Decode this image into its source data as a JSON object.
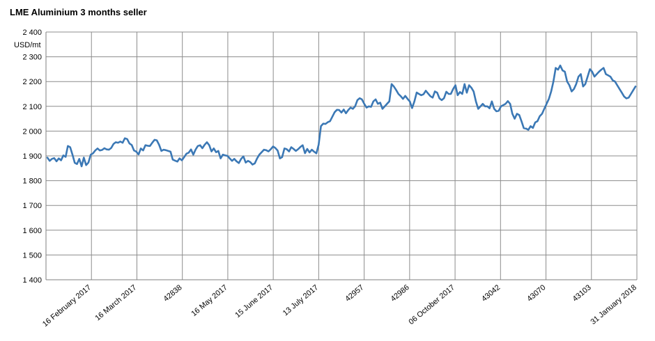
{
  "chart_data": {
    "type": "line",
    "title": "LME Aluminium 3 months seller",
    "ylabel": "USD/mt",
    "xlabel": "",
    "ylim": [
      1400,
      2400
    ],
    "y_ticks": [
      1400,
      1500,
      1600,
      1700,
      1800,
      1900,
      2000,
      2100,
      2200,
      2300,
      2400
    ],
    "y_tick_labels": [
      "1 400",
      "1 500",
      "1 600",
      "1 700",
      "1 800",
      "1 900",
      "2 000",
      "2 100",
      "2 200",
      "2 300",
      "2 400"
    ],
    "x_tick_labels": [
      "16 February 2017",
      "16 March 2017",
      "42838",
      "16 May 2017",
      "15 June 2017",
      "13 July 2017",
      "42957",
      "42986",
      "06 October 2017",
      "43042",
      "43070",
      "43103",
      "31 January 2018"
    ],
    "grid": "vertical and horizontal",
    "line_color": "#3b78b5",
    "series": [
      {
        "values": [
          1893,
          1880,
          1888,
          1891,
          1878,
          1890,
          1882,
          1902,
          1896,
          1940,
          1935,
          1905,
          1872,
          1867,
          1888,
          1858,
          1893,
          1863,
          1873,
          1905,
          1910,
          1922,
          1930,
          1922,
          1924,
          1931,
          1926,
          1925,
          1932,
          1948,
          1955,
          1953,
          1958,
          1953,
          1971,
          1968,
          1950,
          1944,
          1922,
          1917,
          1906,
          1930,
          1922,
          1943,
          1941,
          1940,
          1953,
          1965,
          1963,
          1945,
          1920,
          1925,
          1923,
          1920,
          1917,
          1885,
          1881,
          1877,
          1890,
          1882,
          1895,
          1909,
          1913,
          1926,
          1905,
          1925,
          1940,
          1943,
          1931,
          1945,
          1955,
          1943,
          1918,
          1930,
          1915,
          1920,
          1890,
          1905,
          1902,
          1900,
          1890,
          1880,
          1888,
          1878,
          1871,
          1888,
          1898,
          1873,
          1880,
          1875,
          1865,
          1870,
          1890,
          1905,
          1915,
          1925,
          1923,
          1918,
          1927,
          1938,
          1932,
          1922,
          1890,
          1895,
          1930,
          1927,
          1918,
          1935,
          1928,
          1920,
          1927,
          1936,
          1943,
          1911,
          1928,
          1914,
          1925,
          1917,
          1910,
          1945,
          2020,
          2030,
          2029,
          2036,
          2040,
          2058,
          2076,
          2086,
          2085,
          2075,
          2087,
          2072,
          2085,
          2095,
          2090,
          2100,
          2125,
          2133,
          2128,
          2110,
          2095,
          2100,
          2098,
          2120,
          2128,
          2110,
          2115,
          2090,
          2100,
          2110,
          2120,
          2190,
          2180,
          2166,
          2150,
          2141,
          2130,
          2142,
          2130,
          2120,
          2093,
          2120,
          2156,
          2150,
          2145,
          2149,
          2163,
          2152,
          2141,
          2135,
          2160,
          2155,
          2132,
          2125,
          2133,
          2159,
          2150,
          2150,
          2170,
          2185,
          2145,
          2158,
          2150,
          2190,
          2155,
          2185,
          2175,
          2160,
          2120,
          2090,
          2100,
          2110,
          2100,
          2100,
          2092,
          2120,
          2090,
          2080,
          2082,
          2100,
          2105,
          2110,
          2121,
          2110,
          2070,
          2050,
          2070,
          2065,
          2040,
          2012,
          2010,
          2005,
          2020,
          2013,
          2035,
          2040,
          2060,
          2070,
          2090,
          2110,
          2130,
          2160,
          2200,
          2255,
          2248,
          2265,
          2245,
          2240,
          2200,
          2185,
          2160,
          2170,
          2190,
          2220,
          2230,
          2180,
          2190,
          2220,
          2250,
          2240,
          2220,
          2230,
          2240,
          2248,
          2255,
          2230,
          2225,
          2220,
          2205,
          2200,
          2185,
          2170,
          2155,
          2140,
          2132,
          2135,
          2150,
          2165,
          2180
        ]
      }
    ]
  }
}
